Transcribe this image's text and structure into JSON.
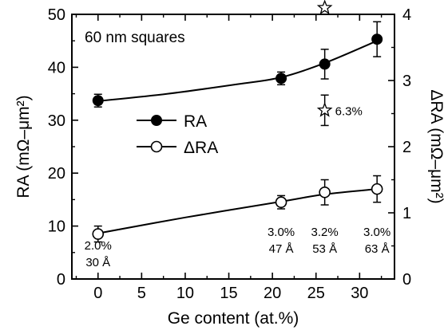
{
  "chart_data": {
    "type": "line",
    "title": "60 nm squares",
    "xlabel": "Ge content (at.%)",
    "ylabel": "RA (mΩ–μm²)",
    "y2label": "ΔRA (mΩ–μm²)",
    "xlim": [
      -3,
      34
    ],
    "ylim": [
      0,
      50
    ],
    "y2lim": [
      0,
      4
    ],
    "xticks": [
      0,
      5,
      10,
      15,
      20,
      25,
      30
    ],
    "yticks": [
      0,
      10,
      20,
      30,
      40,
      50
    ],
    "y2ticks": [
      0,
      1,
      2,
      3,
      4
    ],
    "grid": false,
    "legend_position": "center-left",
    "series": [
      {
        "name": "RA",
        "axis": "left",
        "marker": "filled-circle",
        "x": [
          0,
          21,
          26,
          32
        ],
        "y": [
          33.7,
          37.9,
          40.6,
          45.3
        ],
        "yerr": [
          1.2,
          1.2,
          2.8,
          3.3
        ],
        "fit": [
          [
            0,
            33.6
          ],
          [
            8,
            35.0
          ],
          [
            16,
            36.8
          ],
          [
            21,
            38.1
          ],
          [
            26,
            40.8
          ],
          [
            32,
            45.0
          ]
        ]
      },
      {
        "name": "ΔRA",
        "axis": "right",
        "marker": "open-circle",
        "x": [
          0,
          21,
          26,
          32
        ],
        "y": [
          0.68,
          1.16,
          1.31,
          1.36
        ],
        "yerr": [
          0.12,
          0.1,
          0.19,
          0.2
        ],
        "labels": [
          "2.0%\n30 Å",
          "3.0%\n47 Å",
          "3.2%\n53 Å",
          "3.0%\n63 Å"
        ],
        "fit": [
          [
            0,
            0.69
          ],
          [
            10,
            0.93
          ],
          [
            21,
            1.17
          ],
          [
            26,
            1.28
          ],
          [
            32,
            1.36
          ]
        ]
      },
      {
        "name": "",
        "axis": "right",
        "marker": "open-star",
        "x": [
          26,
          26
        ],
        "y": [
          4.1,
          2.55
        ],
        "yerr": [
          0,
          0.23
        ],
        "labels": [
          "",
          "6.3%"
        ]
      }
    ]
  }
}
